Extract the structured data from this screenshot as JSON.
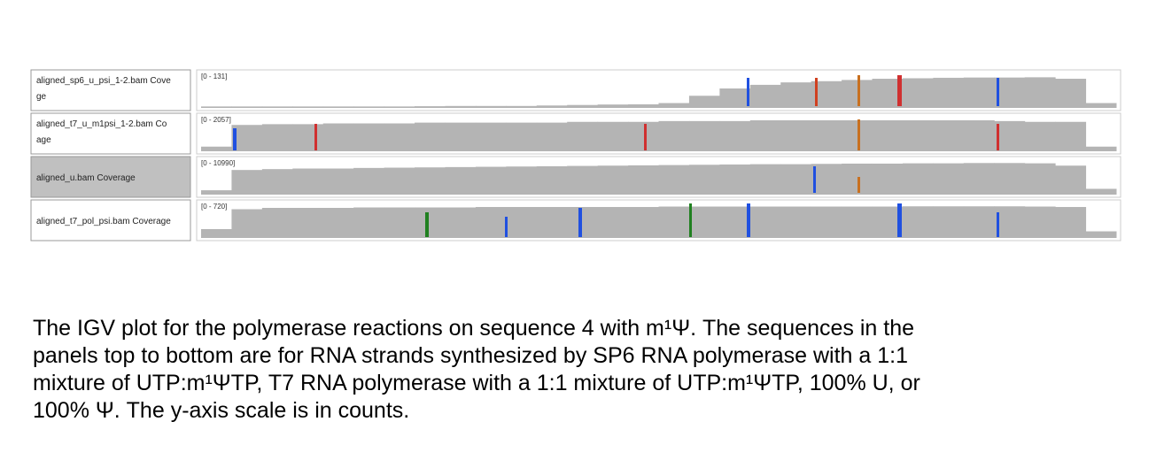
{
  "tracks": [
    {
      "name_lines": [
        "aligned_sp6_u_psi_1-2.bam Cove",
        "ge"
      ],
      "range": "[0 - 131]",
      "ylim": [
        0,
        131
      ],
      "selected": false,
      "coverage": [
        6,
        6,
        6,
        6,
        6,
        6,
        6,
        7,
        8,
        8,
        8,
        10,
        12,
        14,
        15,
        20,
        50,
        80,
        95,
        105,
        110,
        115,
        120,
        122,
        124,
        125,
        125,
        126,
        120,
        20
      ]
    },
    {
      "name_lines": [
        "aligned_t7_u_m1psi_1-2.bam Co",
        "age"
      ],
      "range": "[0 - 2057]",
      "ylim": [
        0,
        2057
      ],
      "selected": false,
      "coverage": [
        300,
        1700,
        1750,
        1750,
        1800,
        1800,
        1800,
        1850,
        1850,
        1850,
        1850,
        1850,
        1900,
        1900,
        1900,
        1950,
        1950,
        1950,
        2000,
        2000,
        2000,
        2000,
        2000,
        2000,
        2000,
        2000,
        1950,
        1900,
        1900,
        300
      ]
    },
    {
      "name_lines": [
        "aligned_u.bam Coverage"
      ],
      "range": "[0 - 10990]",
      "ylim": [
        0,
        10990
      ],
      "selected": true,
      "coverage": [
        1500,
        8500,
        8800,
        9000,
        9000,
        9200,
        9300,
        9400,
        9500,
        9600,
        9700,
        9800,
        9900,
        10000,
        10100,
        10200,
        10300,
        10400,
        10500,
        10500,
        10600,
        10700,
        10700,
        10800,
        10800,
        10900,
        10900,
        10800,
        10000,
        2000
      ]
    },
    {
      "name_lines": [
        "aligned_t7_pol_psi.bam Coverage"
      ],
      "range": "[0 - 720]",
      "ylim": [
        0,
        720
      ],
      "selected": false,
      "coverage": [
        200,
        650,
        680,
        680,
        680,
        690,
        690,
        690,
        690,
        700,
        700,
        700,
        700,
        700,
        700,
        710,
        710,
        710,
        710,
        710,
        710,
        710,
        710,
        715,
        715,
        715,
        715,
        710,
        700,
        150
      ]
    }
  ],
  "caption_lines": [
    "The IGV plot for the polymerase reactions on sequence 4 with m¹Ψ.  The sequences in the",
    "panels top to bottom are for RNA strands synthesized by SP6 RNA polymerase with a 1:1",
    "mixture of UTP:m¹ΨTP, T7 RNA polymerase with a 1:1 mixture of UTP:m¹ΨTP, 100% U, or",
    "100% Ψ.  The y-axis scale is in counts."
  ]
}
